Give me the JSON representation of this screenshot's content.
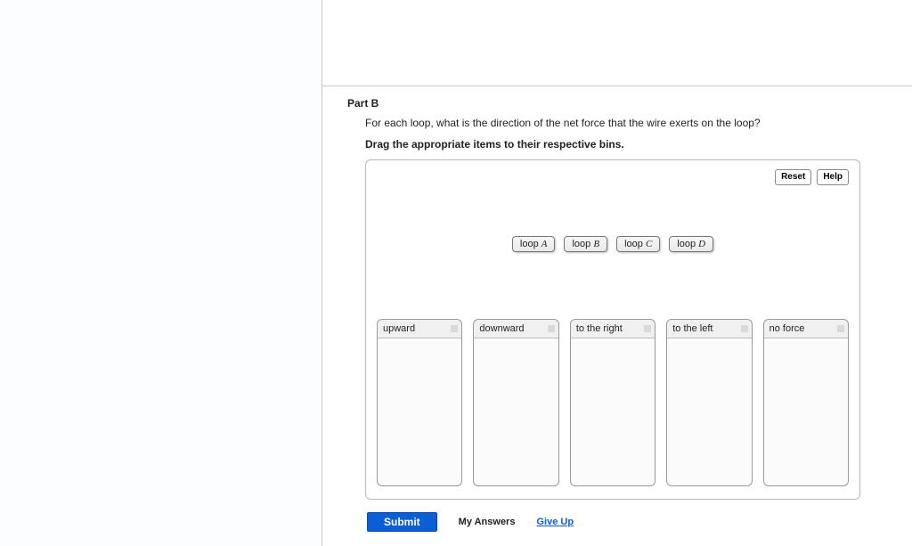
{
  "part": {
    "title": "Part B",
    "prompt": "For each loop, what is the direction of the net force that the wire exerts on the loop?",
    "instruction": "Drag the appropriate items to their respective bins."
  },
  "toolbar": {
    "reset": "Reset",
    "help": "Help"
  },
  "chips": {
    "a_prefix": "loop ",
    "a_letter": "A",
    "b_prefix": "loop ",
    "b_letter": "B",
    "c_prefix": "loop ",
    "c_letter": "C",
    "d_prefix": "loop ",
    "d_letter": "D"
  },
  "bins": {
    "b1": "upward",
    "b2": "downward",
    "b3": "to the right",
    "b4": "to the left",
    "b5": "no force"
  },
  "actions": {
    "submit": "Submit",
    "my_answers": "My Answers",
    "give_up": "Give Up"
  }
}
